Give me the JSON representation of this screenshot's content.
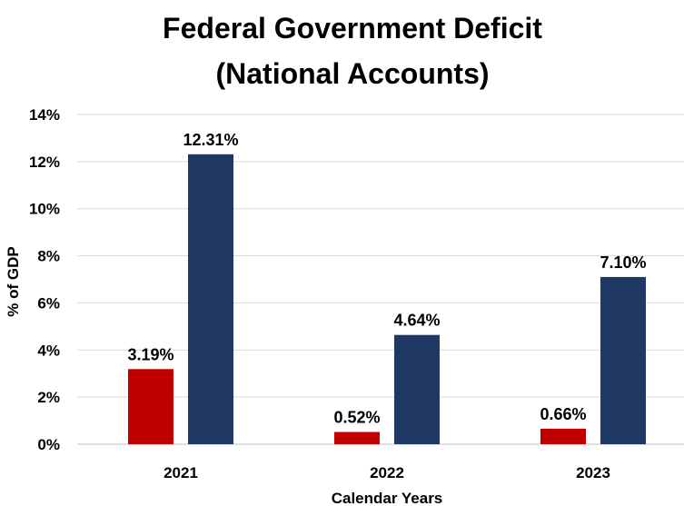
{
  "chart_data": {
    "type": "bar",
    "title": "Federal Government Deficit",
    "subtitle": "(National Accounts)",
    "xlabel": "Calendar Years",
    "ylabel": "% of GDP",
    "categories": [
      "2021",
      "2022",
      "2023"
    ],
    "series": [
      {
        "values": [
          3.19,
          0.52,
          0.66
        ],
        "labels": [
          "3.19%",
          "0.52%",
          "0.66%"
        ],
        "color": "#c00000"
      },
      {
        "values": [
          12.31,
          4.64,
          7.1
        ],
        "labels": [
          "12.31%",
          "4.64%",
          "7.10%"
        ],
        "color": "#1f3864"
      }
    ],
    "ylim": [
      0,
      14
    ],
    "yticks": [
      "0%",
      "2%",
      "4%",
      "6%",
      "8%",
      "10%",
      "12%",
      "14%"
    ],
    "grid": true
  }
}
